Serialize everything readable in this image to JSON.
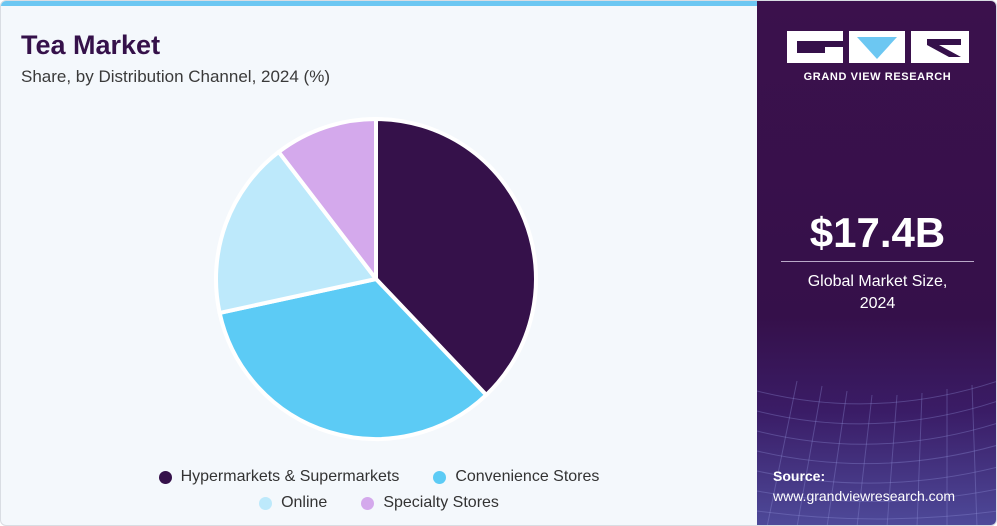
{
  "header": {
    "title": "Tea Market",
    "subtitle": "Share, by Distribution Channel, 2024 (%)"
  },
  "brand": {
    "logo_text": "GRAND VIEW RESEARCH"
  },
  "summary": {
    "market_size": "$17.4B",
    "caption_line1": "Global Market Size,",
    "caption_line2": "2024"
  },
  "footer": {
    "source_label": "Source:",
    "source_url": "www.grandviewresearch.com"
  },
  "colors": {
    "accent_top": "#6cc7f2",
    "panel_dark": "#35104a"
  },
  "chart_data": {
    "type": "pie",
    "title": "Tea Market",
    "subtitle": "Share, by Distribution Channel, 2024 (%)",
    "start_angle_deg": 0,
    "direction": "clockwise",
    "legend_position": "bottom",
    "slices": [
      {
        "label": "Hypermarkets & Supermarkets",
        "value": 37.9,
        "color": "#35114a"
      },
      {
        "label": "Convenience Stores",
        "value": 33.7,
        "color": "#5ccbf5"
      },
      {
        "label": "Online",
        "value": 18.0,
        "color": "#bde9fb"
      },
      {
        "label": "Specialty Stores",
        "value": 10.4,
        "color": "#d4a9ec"
      }
    ]
  }
}
